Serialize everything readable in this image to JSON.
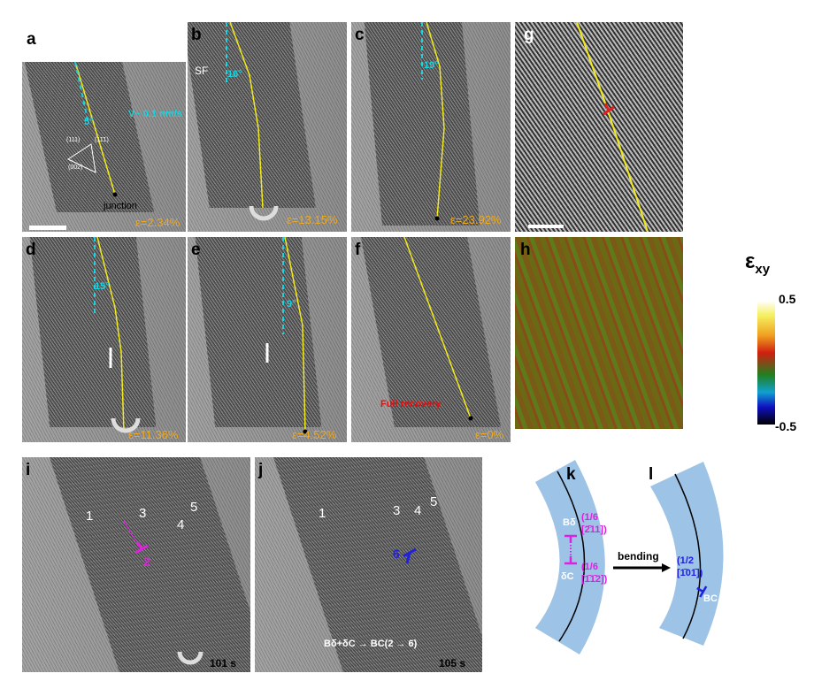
{
  "panels": {
    "a": {
      "label": "a",
      "strain": "ε=2.34%",
      "velocity": "V~ 0.1 nm/s",
      "angle": "5°",
      "plane1": "(111)",
      "plane2": "(11̄1)",
      "plane3": "(002)",
      "junction": "junction"
    },
    "b": {
      "label": "b",
      "strain": "ε=13.15%",
      "angle": "16°",
      "sf": "SF"
    },
    "c": {
      "label": "c",
      "strain": "ε=23.92%",
      "angle": "19°"
    },
    "d": {
      "label": "d",
      "strain": "ε=11.36%",
      "angle": "15°"
    },
    "e": {
      "label": "e",
      "strain": "ε=4.52%",
      "angle": "9°"
    },
    "f": {
      "label": "f",
      "strain": "ε=0%",
      "note": "Full recovery"
    },
    "g": {
      "label": "g"
    },
    "h": {
      "label": "h",
      "colorbar": {
        "title": "ε",
        "subscript": "xy",
        "max": "0.5",
        "min": "-0.5"
      }
    },
    "i": {
      "label": "i",
      "time": "101 s",
      "markers": [
        "1",
        "3",
        "4",
        "5",
        "2"
      ]
    },
    "j": {
      "label": "j",
      "time": "105 s",
      "markers": [
        "1",
        "3",
        "4",
        "5",
        "6"
      ],
      "reaction": "Bδ+δC → BC(2 → 6)"
    },
    "k": {
      "label": "k",
      "b1": "Bδ",
      "b1_vec": "(1/6",
      "b1_vec2": "[2̄11])",
      "b2": "δC",
      "b2_vec": "(1/6",
      "b2_vec2": "[1̄1̄2])",
      "arrow": "bending"
    },
    "l": {
      "label": "l",
      "vec": "(1/2",
      "vec2": "[1̄01̄])",
      "name": "BC"
    }
  },
  "colors": {
    "strain": "#f0a81c",
    "angle": "#19d3e0",
    "trace": "#f2ea1a",
    "partial": "#e020e0",
    "full": "#2020e0",
    "band": "#9dc3e6"
  }
}
